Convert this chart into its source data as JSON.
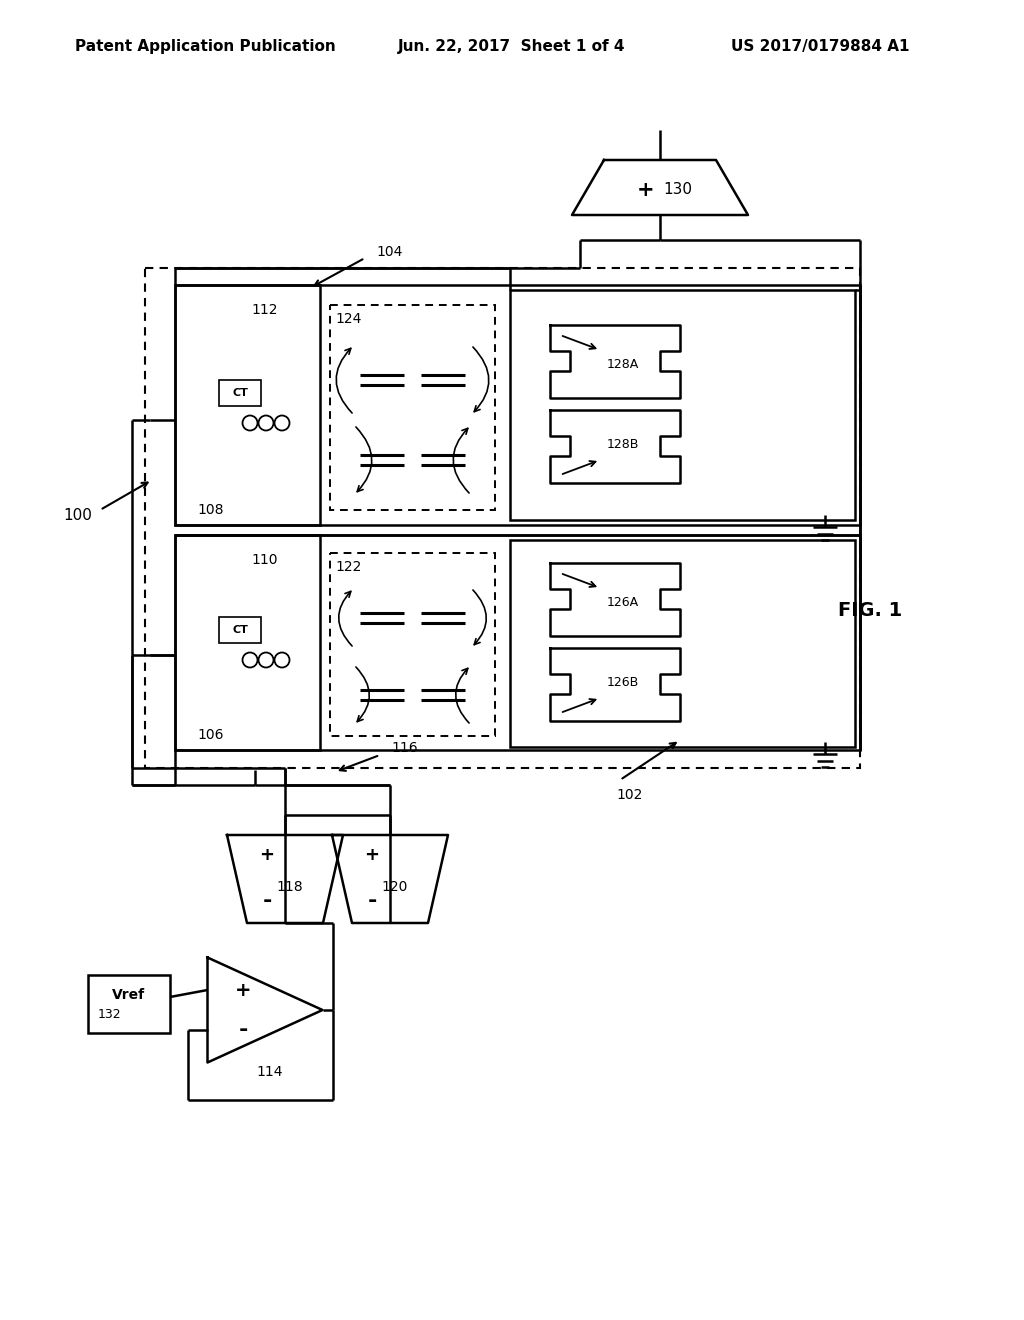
{
  "bg_color": "#ffffff",
  "header_left": "Patent Application Publication",
  "header_center": "Jun. 22, 2017  Sheet 1 of 4",
  "header_right": "US 2017/0179884 A1",
  "fig_label": "FIG. 1",
  "lbl_100": "100",
  "lbl_102": "102",
  "lbl_104": "104",
  "lbl_106": "106",
  "lbl_108": "108",
  "lbl_110": "110",
  "lbl_112": "112",
  "lbl_114": "114",
  "lbl_116": "116",
  "lbl_118": "118",
  "lbl_120": "120",
  "lbl_122": "122",
  "lbl_124": "124",
  "lbl_126A": "126A",
  "lbl_126B": "126B",
  "lbl_128A": "128A",
  "lbl_128B": "128B",
  "lbl_130": "130",
  "lbl_132": "132",
  "lbl_Vref": "Vref"
}
